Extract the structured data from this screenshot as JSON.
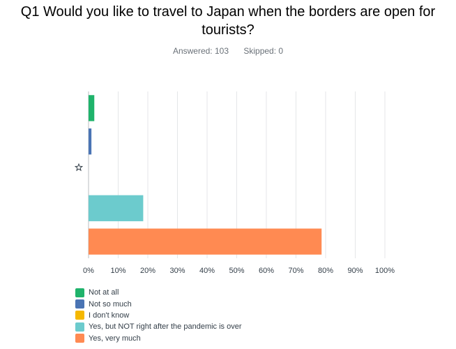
{
  "header": {
    "title": "Q1 Would you like to travel to Japan when the borders are open for tourists?",
    "answered": "Answered: 103",
    "skipped": "Skipped: 0"
  },
  "star_icon": "star-outline-icon",
  "chart_data": {
    "type": "bar",
    "orientation": "horizontal",
    "categories": [
      "Not at all",
      "Not so much",
      "I don't know",
      "Yes, but NOT right after the pandemic is over",
      "Yes, very much"
    ],
    "values": [
      1.94,
      0.97,
      0,
      18.45,
      78.64
    ],
    "colors": [
      "#1fb36b",
      "#4a74b4",
      "#f5b800",
      "#6ccbcd",
      "#ff8a52"
    ],
    "xlim": [
      0,
      100
    ],
    "xticks": [
      "0%",
      "10%",
      "20%",
      "30%",
      "40%",
      "50%",
      "60%",
      "70%",
      "80%",
      "90%",
      "100%"
    ],
    "grid": true,
    "legend": "bottom-left"
  }
}
